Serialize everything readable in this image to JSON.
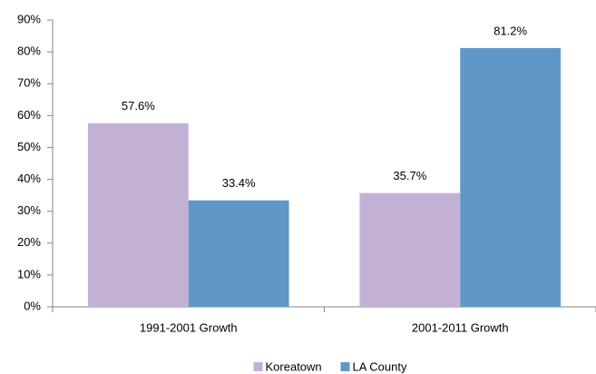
{
  "chart_data": {
    "type": "bar",
    "categories": [
      "1991-2001 Growth",
      "2001-2011 Growth"
    ],
    "series": [
      {
        "name": "Koreatown",
        "color": "#c3b1d5",
        "values": [
          57.6,
          35.7
        ],
        "value_labels": [
          "57.6%",
          "35.7%"
        ]
      },
      {
        "name": "LA County",
        "color": "#5f97c9",
        "values": [
          33.4,
          81.2
        ],
        "value_labels": [
          "33.4%",
          "81.2%"
        ]
      }
    ],
    "ylim": [
      0,
      90
    ],
    "yticks": [
      {
        "value": 0,
        "label": "0%"
      },
      {
        "value": 10,
        "label": "10%"
      },
      {
        "value": 20,
        "label": "20%"
      },
      {
        "value": 30,
        "label": "30%"
      },
      {
        "value": 40,
        "label": "40%"
      },
      {
        "value": 50,
        "label": "50%"
      },
      {
        "value": 60,
        "label": "60%"
      },
      {
        "value": 70,
        "label": "70%"
      },
      {
        "value": 80,
        "label": "80%"
      },
      {
        "value": 90,
        "label": "90%"
      }
    ],
    "grid": false,
    "legend": "bottom"
  }
}
